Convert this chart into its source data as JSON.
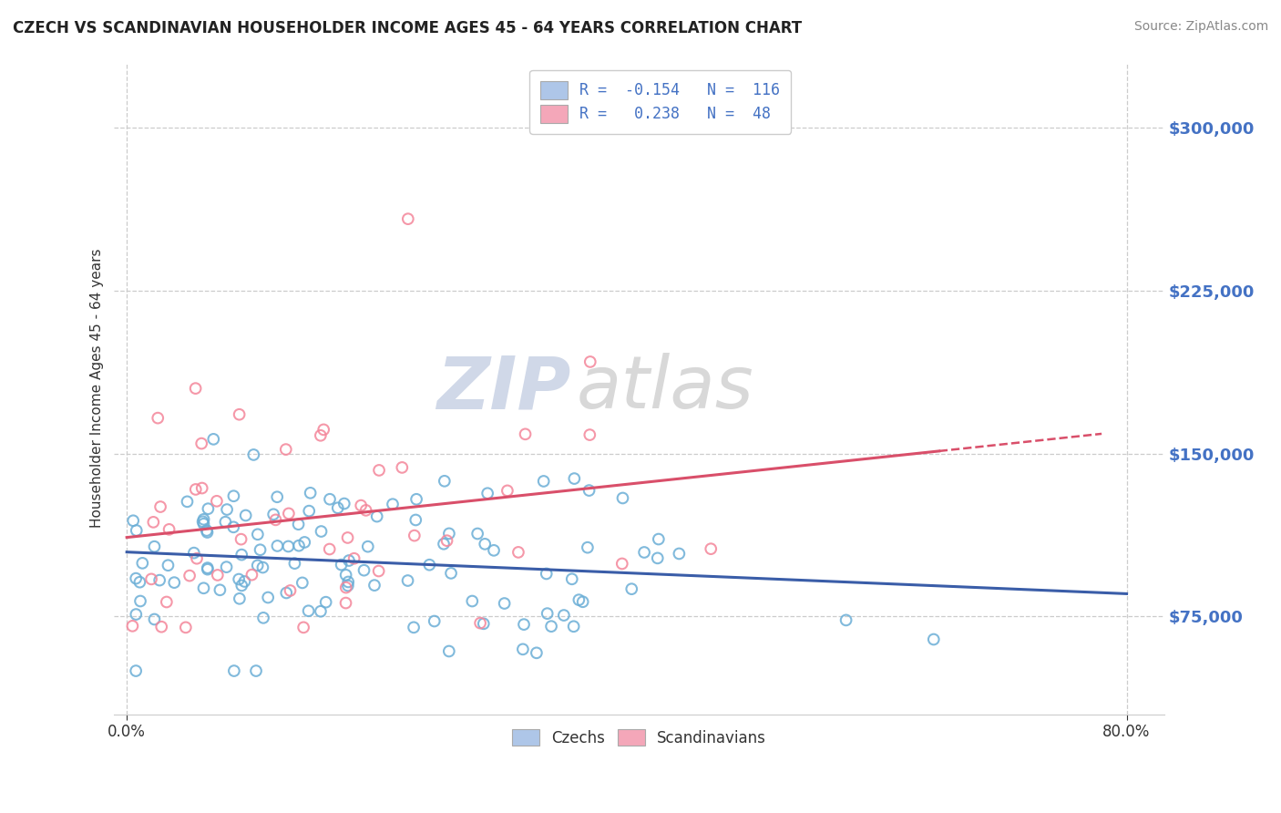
{
  "title": "CZECH VS SCANDINAVIAN HOUSEHOLDER INCOME AGES 45 - 64 YEARS CORRELATION CHART",
  "source": "Source: ZipAtlas.com",
  "ylabel": "Householder Income Ages 45 - 64 years",
  "ytick_labels": [
    "$75,000",
    "$150,000",
    "$225,000",
    "$300,000"
  ],
  "ytick_values": [
    75000,
    150000,
    225000,
    300000
  ],
  "ymin": 30000,
  "ymax": 330000,
  "xmin": -0.01,
  "xmax": 0.83,
  "legend_label1": "R =  -0.154   N =  116",
  "legend_label2": "R =   0.238   N =  48",
  "legend_color1": "#aec6e8",
  "legend_color2": "#f4a7b9",
  "scatter_color1": "#6baed6",
  "scatter_color2": "#f4869a",
  "trendline_color1": "#3a5da8",
  "trendline_color2": "#d94f6a",
  "bottom_label1": "Czechs",
  "bottom_label2": "Scandinavians",
  "background_color": "#ffffff",
  "grid_color": "#cccccc",
  "watermark_zip_color": "#d0d8e8",
  "watermark_atlas_color": "#d8d8d8",
  "czech_R": -0.154,
  "czech_N": 116,
  "scand_R": 0.238,
  "scand_N": 48
}
